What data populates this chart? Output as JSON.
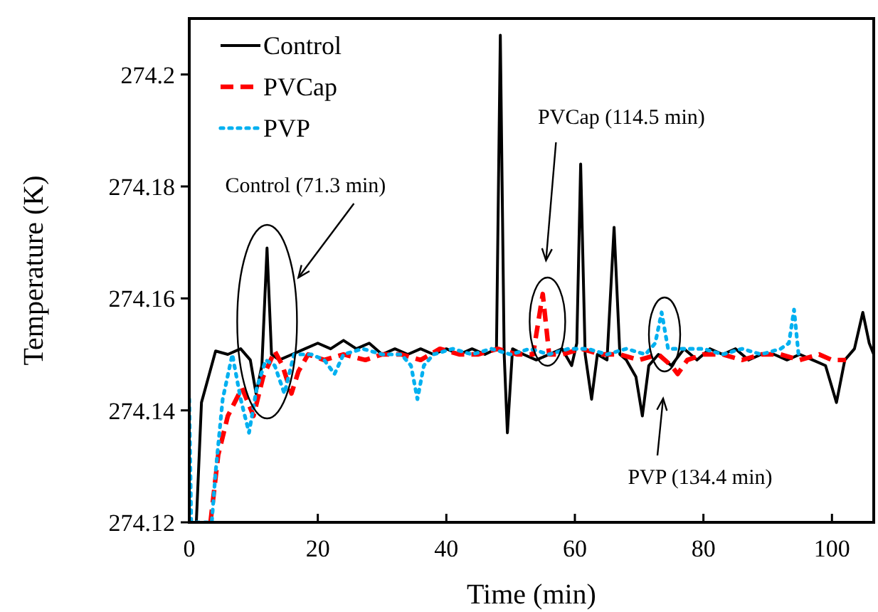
{
  "chart_data": {
    "type": "line",
    "xlabel": "Time (min)",
    "ylabel": "Temperature (K)",
    "xlim": [
      0,
      106.5
    ],
    "ylim": [
      274.12,
      274.21
    ],
    "xticks": [
      0,
      20,
      40,
      60,
      80,
      100
    ],
    "yticks": [
      274.12,
      274.14,
      274.16,
      274.18,
      274.2
    ],
    "grid": false,
    "legend": "top left",
    "marker": "none",
    "series": [
      {
        "name": "Control",
        "color": "#000000",
        "line_style": "solid",
        "x": [
          0.5,
          1.1,
          1.9,
          3,
          4.1,
          6,
          8,
          9.5,
          10.4,
          11.3,
          12.1,
          12.8,
          14,
          16,
          18,
          20,
          22,
          24,
          26,
          28,
          30,
          32,
          34,
          36,
          38,
          40,
          42,
          44,
          46,
          47.8,
          48.4,
          49,
          49.5,
          50.3,
          52,
          54,
          56,
          58,
          59.5,
          60.3,
          60.9,
          61.6,
          62.6,
          63.5,
          65,
          66.1,
          67,
          68,
          69.5,
          70.5,
          71.5,
          73,
          75,
          77,
          79,
          81,
          83,
          85,
          87,
          89,
          91,
          93,
          95,
          97,
          99,
          100.7,
          102,
          103.5,
          104.8,
          105.8,
          106.5
        ],
        "values": [
          274.12,
          274.12,
          274.1414,
          274.146,
          274.1506,
          274.15,
          274.151,
          274.149,
          274.143,
          274.148,
          274.169,
          274.15,
          274.149,
          274.15,
          274.151,
          274.152,
          274.151,
          274.1525,
          274.151,
          274.152,
          274.15,
          274.151,
          274.15,
          274.151,
          274.15,
          274.151,
          274.15,
          274.151,
          274.15,
          274.151,
          274.207,
          274.15,
          274.136,
          274.151,
          274.15,
          274.149,
          274.15,
          274.151,
          274.148,
          274.152,
          274.184,
          274.15,
          274.142,
          274.15,
          274.149,
          274.1727,
          274.15,
          274.149,
          274.146,
          274.139,
          274.148,
          274.15,
          274.148,
          274.151,
          274.149,
          274.151,
          274.15,
          274.151,
          274.149,
          274.15,
          274.15,
          274.149,
          274.15,
          274.149,
          274.148,
          274.1414,
          274.149,
          274.151,
          274.1575,
          274.152,
          274.15
        ]
      },
      {
        "name": "PVCap",
        "color": "#ff0000",
        "line_style": "dashed",
        "x": [
          3.3,
          4.5,
          6,
          8.2,
          10,
          11.5,
          13.3,
          14.5,
          15.9,
          17,
          18.5,
          21,
          24,
          27.4,
          30,
          33,
          36,
          39,
          42,
          45,
          48,
          51,
          53.5,
          55,
          56,
          58,
          61,
          64,
          67,
          70,
          73,
          75,
          76,
          77.5,
          80,
          83,
          86,
          89,
          92,
          95,
          98,
          100,
          102.2
        ],
        "values": [
          274.12,
          274.132,
          274.139,
          274.144,
          274.139,
          274.146,
          274.1506,
          274.148,
          274.143,
          274.147,
          274.15,
          274.149,
          274.15,
          274.149,
          274.15,
          274.15,
          274.149,
          274.151,
          274.15,
          274.15,
          274.151,
          274.15,
          274.15,
          274.1608,
          274.15,
          274.15,
          274.151,
          274.15,
          274.15,
          274.149,
          274.15,
          274.148,
          274.1465,
          274.149,
          274.15,
          274.15,
          274.149,
          274.15,
          274.15,
          274.149,
          274.15,
          274.149,
          274.149
        ]
      },
      {
        "name": "PVP",
        "color": "#00b0f0",
        "line_style": "dotted",
        "x": [
          0,
          0.3,
          3.5,
          4.1,
          5.2,
          6.7,
          8,
          9.3,
          10.5,
          11.9,
          13.3,
          14.8,
          16.3,
          19,
          21,
          22.6,
          24,
          27,
          30,
          33,
          34.5,
          35.5,
          36.5,
          38,
          41,
          44,
          47,
          50,
          53,
          56,
          59,
          62,
          65,
          68,
          71,
          72.5,
          73.5,
          74.5,
          77,
          80,
          83,
          86,
          89,
          92,
          93.3,
          94.1,
          94.8
        ],
        "values": [
          274.142,
          274.12,
          274.12,
          274.129,
          274.142,
          274.15,
          274.142,
          274.136,
          274.144,
          274.149,
          274.148,
          274.143,
          274.15,
          274.15,
          274.149,
          274.1465,
          274.15,
          274.151,
          274.15,
          274.15,
          274.148,
          274.142,
          274.148,
          274.15,
          274.151,
          274.15,
          274.151,
          274.15,
          274.151,
          274.15,
          274.151,
          274.151,
          274.15,
          274.151,
          274.15,
          274.152,
          274.1575,
          274.151,
          274.151,
          274.151,
          274.15,
          274.151,
          274.15,
          274.151,
          274.152,
          274.158,
          274.15
        ]
      }
    ],
    "annotations": [
      "Control (71.3 min)",
      "PVCap (114.5 min)",
      "PVP (134.4 min)"
    ]
  }
}
